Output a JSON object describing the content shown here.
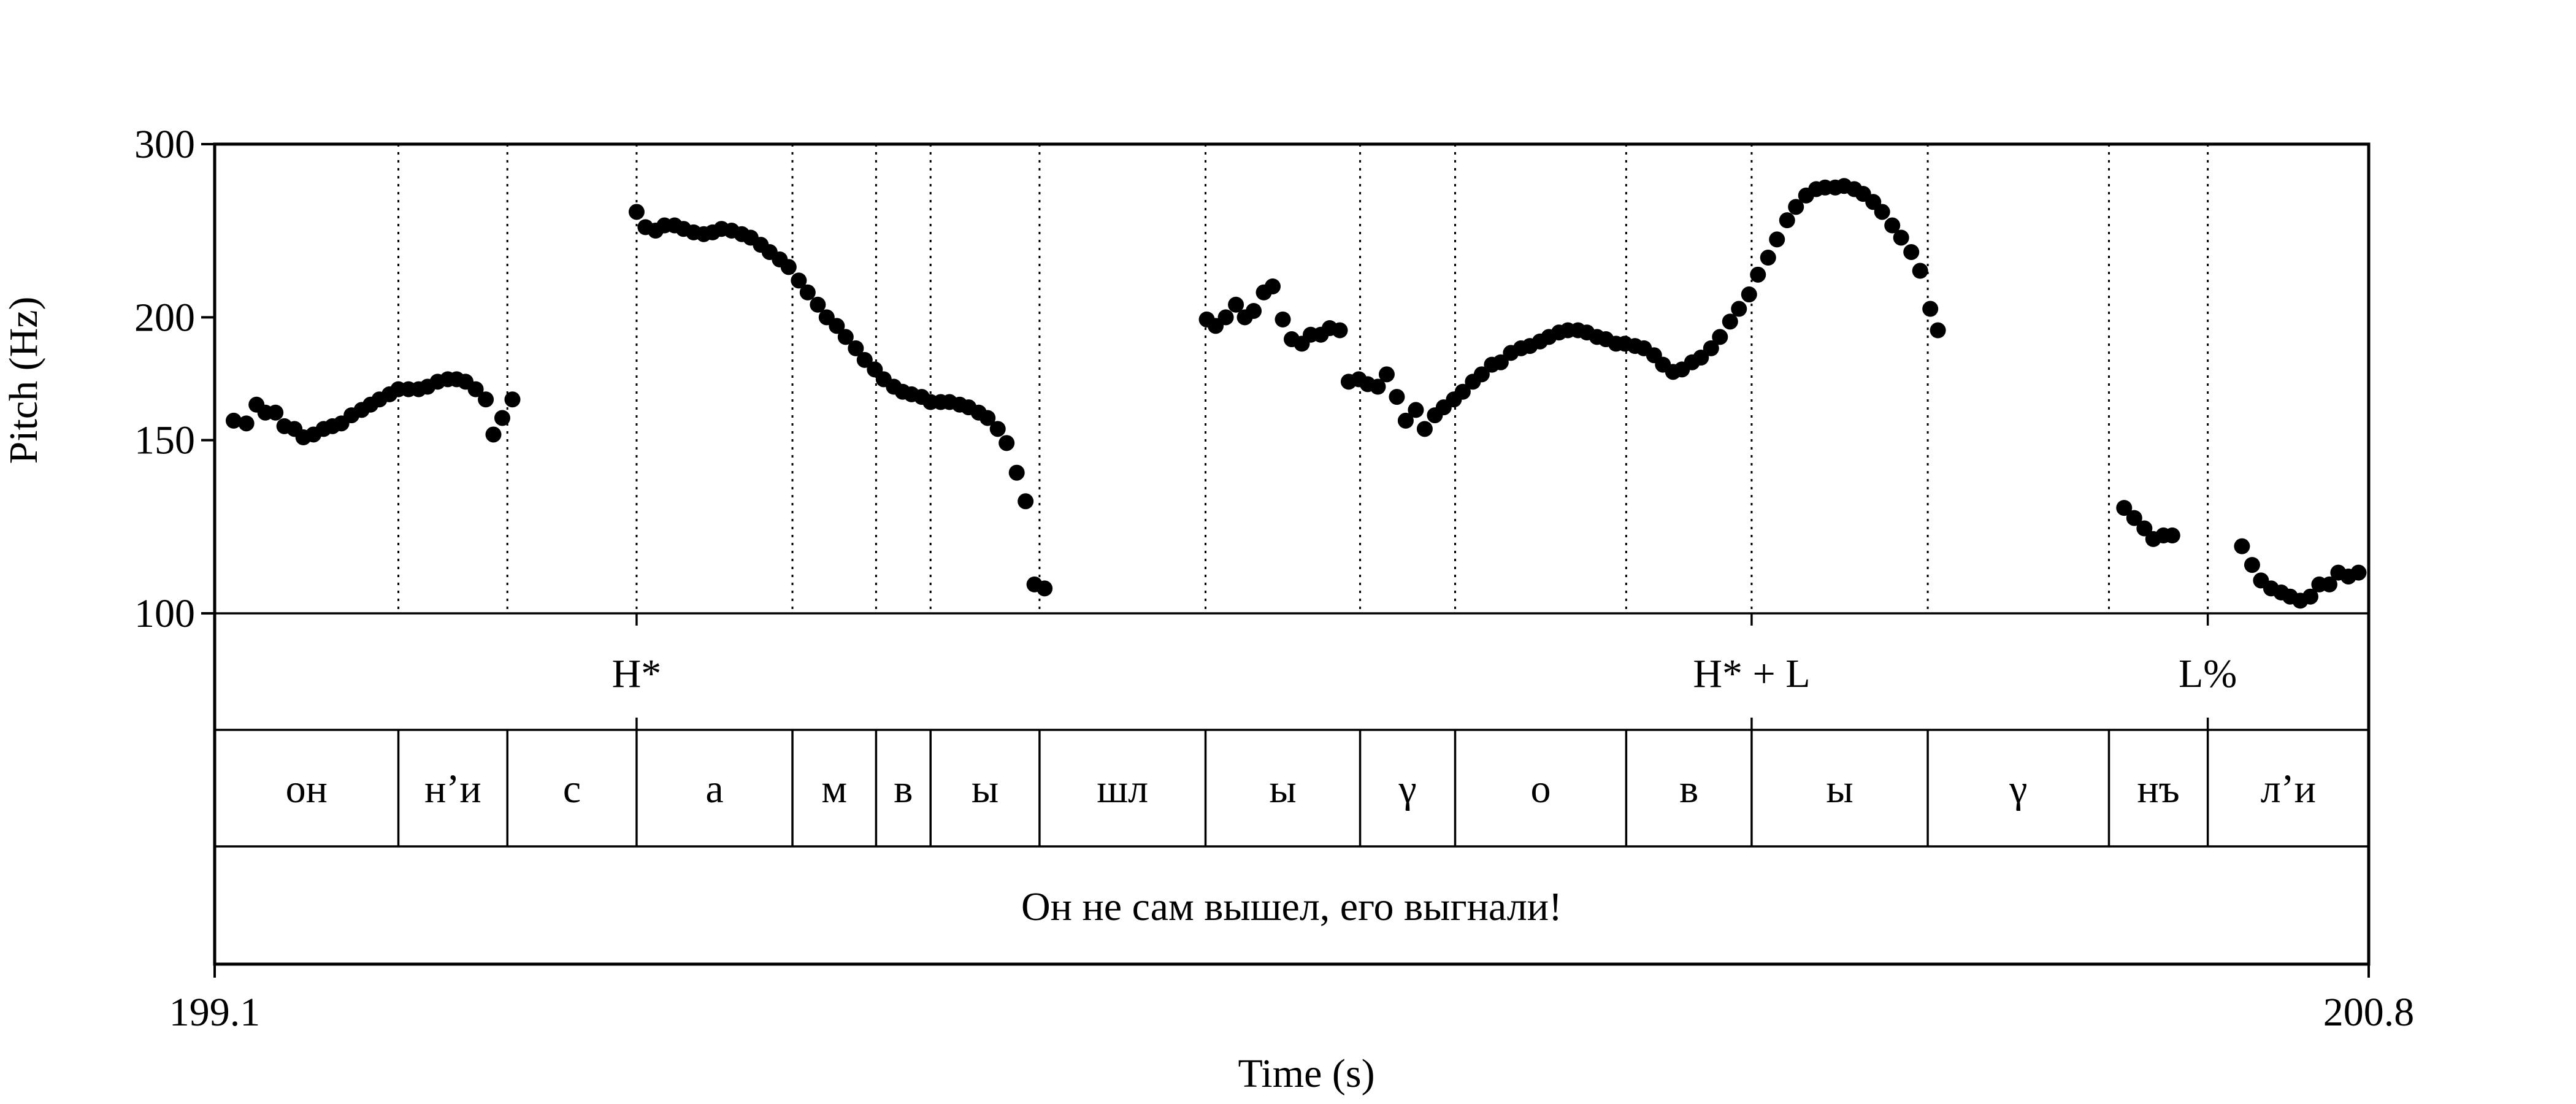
{
  "chart_data": {
    "type": "scatter",
    "title": "",
    "xlabel": "Time (s)",
    "ylabel": "Pitch (Hz)",
    "xlim": [
      199.1,
      200.8
    ],
    "ylim": [
      100,
      300
    ],
    "y_scale": "log",
    "x_tick_labels": [
      "199.1",
      "200.8"
    ],
    "y_ticks": [
      100,
      150,
      200,
      300
    ],
    "y_tick_labels": [
      "100",
      "150",
      "200",
      "300"
    ],
    "grid": false,
    "boundaries": [
      199.245,
      199.331,
      199.433,
      199.556,
      199.622,
      199.665,
      199.751,
      199.882,
      200.004,
      200.079,
      200.214,
      200.313,
      200.452,
      200.595,
      200.673
    ],
    "tones": [
      {
        "t": 199.433,
        "label": "H*"
      },
      {
        "t": 200.313,
        "label": "H* + L"
      },
      {
        "t": 200.673,
        "label": "L%"
      }
    ],
    "segments": [
      {
        "start": 199.1,
        "end": 199.245,
        "label": "он"
      },
      {
        "start": 199.245,
        "end": 199.331,
        "label": "н’и"
      },
      {
        "start": 199.331,
        "end": 199.433,
        "label": "с"
      },
      {
        "start": 199.433,
        "end": 199.556,
        "label": "а"
      },
      {
        "start": 199.556,
        "end": 199.622,
        "label": "м"
      },
      {
        "start": 199.622,
        "end": 199.665,
        "label": "в"
      },
      {
        "start": 199.665,
        "end": 199.751,
        "label": "ы"
      },
      {
        "start": 199.751,
        "end": 199.882,
        "label": "шл"
      },
      {
        "start": 199.882,
        "end": 200.004,
        "label": "ы"
      },
      {
        "start": 200.004,
        "end": 200.079,
        "label": "γ"
      },
      {
        "start": 200.079,
        "end": 200.214,
        "label": "о"
      },
      {
        "start": 200.214,
        "end": 200.313,
        "label": "в"
      },
      {
        "start": 200.313,
        "end": 200.452,
        "label": "ы"
      },
      {
        "start": 200.452,
        "end": 200.595,
        "label": "γ"
      },
      {
        "start": 200.595,
        "end": 200.673,
        "label": "нъ"
      },
      {
        "start": 200.673,
        "end": 200.8,
        "label": "л’и"
      }
    ],
    "sentence": "Он не сам вышел, его выгнали!",
    "points": [
      [
        199.115,
        157
      ],
      [
        199.125,
        156
      ],
      [
        199.133,
        163
      ],
      [
        199.14,
        160
      ],
      [
        199.148,
        160
      ],
      [
        199.155,
        155
      ],
      [
        199.163,
        154
      ],
      [
        199.17,
        151
      ],
      [
        199.178,
        152
      ],
      [
        199.186,
        154
      ],
      [
        199.193,
        155
      ],
      [
        199.2,
        156
      ],
      [
        199.208,
        159
      ],
      [
        199.216,
        161
      ],
      [
        199.223,
        163
      ],
      [
        199.23,
        165
      ],
      [
        199.238,
        167
      ],
      [
        199.245,
        169
      ],
      [
        199.253,
        169
      ],
      [
        199.261,
        169
      ],
      [
        199.268,
        170
      ],
      [
        199.276,
        172
      ],
      [
        199.284,
        173
      ],
      [
        199.291,
        173
      ],
      [
        199.298,
        172
      ],
      [
        199.306,
        169
      ],
      [
        199.314,
        165
      ],
      [
        199.32,
        152
      ],
      [
        199.327,
        158
      ],
      [
        199.335,
        165
      ],
      [
        199.433,
        256
      ],
      [
        199.44,
        247
      ],
      [
        199.448,
        245
      ],
      [
        199.455,
        248
      ],
      [
        199.463,
        248
      ],
      [
        199.47,
        246
      ],
      [
        199.478,
        244
      ],
      [
        199.486,
        243
      ],
      [
        199.493,
        244
      ],
      [
        199.5,
        246
      ],
      [
        199.508,
        245
      ],
      [
        199.516,
        243
      ],
      [
        199.523,
        241
      ],
      [
        199.531,
        237
      ],
      [
        199.538,
        233
      ],
      [
        199.546,
        229
      ],
      [
        199.553,
        225
      ],
      [
        199.561,
        218
      ],
      [
        199.568,
        212
      ],
      [
        199.576,
        206
      ],
      [
        199.583,
        200
      ],
      [
        199.591,
        196
      ],
      [
        199.598,
        191
      ],
      [
        199.606,
        186
      ],
      [
        199.613,
        181
      ],
      [
        199.621,
        177
      ],
      [
        199.628,
        173
      ],
      [
        199.636,
        170
      ],
      [
        199.643,
        168
      ],
      [
        199.65,
        167
      ],
      [
        199.658,
        166
      ],
      [
        199.665,
        164
      ],
      [
        199.673,
        164
      ],
      [
        199.68,
        164
      ],
      [
        199.688,
        163
      ],
      [
        199.695,
        162
      ],
      [
        199.703,
        160
      ],
      [
        199.71,
        158
      ],
      [
        199.718,
        154
      ],
      [
        199.725,
        149
      ],
      [
        199.733,
        139
      ],
      [
        199.74,
        130
      ],
      [
        199.747,
        107
      ],
      [
        199.755,
        106
      ],
      [
        199.883,
        199
      ],
      [
        199.89,
        196
      ],
      [
        199.898,
        200
      ],
      [
        199.906,
        206
      ],
      [
        199.913,
        200
      ],
      [
        199.92,
        203
      ],
      [
        199.928,
        212
      ],
      [
        199.935,
        215
      ],
      [
        199.943,
        199
      ],
      [
        199.95,
        190
      ],
      [
        199.958,
        188
      ],
      [
        199.965,
        192
      ],
      [
        199.973,
        192
      ],
      [
        199.98,
        195
      ],
      [
        199.988,
        194
      ],
      [
        199.995,
        172
      ],
      [
        200.003,
        173
      ],
      [
        200.01,
        171
      ],
      [
        200.018,
        170
      ],
      [
        200.025,
        175
      ],
      [
        200.033,
        166
      ],
      [
        200.04,
        157
      ],
      [
        200.048,
        161
      ],
      [
        200.055,
        154
      ],
      [
        200.063,
        159
      ],
      [
        200.07,
        162
      ],
      [
        200.078,
        165
      ],
      [
        200.085,
        168
      ],
      [
        200.093,
        172
      ],
      [
        200.1,
        175
      ],
      [
        200.108,
        179
      ],
      [
        200.115,
        180
      ],
      [
        200.123,
        184
      ],
      [
        200.131,
        186
      ],
      [
        200.138,
        187
      ],
      [
        200.146,
        189
      ],
      [
        200.153,
        191
      ],
      [
        200.161,
        193
      ],
      [
        200.168,
        194
      ],
      [
        200.176,
        194
      ],
      [
        200.183,
        193
      ],
      [
        200.191,
        191
      ],
      [
        200.198,
        190
      ],
      [
        200.206,
        188
      ],
      [
        200.213,
        188
      ],
      [
        200.221,
        187
      ],
      [
        200.228,
        186
      ],
      [
        200.236,
        183
      ],
      [
        200.243,
        179
      ],
      [
        200.251,
        176
      ],
      [
        200.258,
        177
      ],
      [
        200.266,
        180
      ],
      [
        200.273,
        182
      ],
      [
        200.281,
        186
      ],
      [
        200.288,
        191
      ],
      [
        200.296,
        198
      ],
      [
        200.303,
        204
      ],
      [
        200.311,
        211
      ],
      [
        200.318,
        221
      ],
      [
        200.326,
        230
      ],
      [
        200.333,
        240
      ],
      [
        200.341,
        251
      ],
      [
        200.348,
        259
      ],
      [
        200.356,
        266
      ],
      [
        200.364,
        270
      ],
      [
        200.371,
        271
      ],
      [
        200.379,
        271
      ],
      [
        200.386,
        272
      ],
      [
        200.394,
        270
      ],
      [
        200.401,
        267
      ],
      [
        200.409,
        262
      ],
      [
        200.416,
        256
      ],
      [
        200.424,
        248
      ],
      [
        200.431,
        241
      ],
      [
        200.439,
        233
      ],
      [
        200.446,
        223
      ],
      [
        200.454,
        204
      ],
      [
        200.46,
        194
      ],
      [
        200.607,
        128
      ],
      [
        200.615,
        125
      ],
      [
        200.623,
        122
      ],
      [
        200.63,
        119
      ],
      [
        200.638,
        120
      ],
      [
        200.645,
        120
      ],
      [
        200.7,
        117
      ],
      [
        200.708,
        112
      ],
      [
        200.715,
        108
      ],
      [
        200.723,
        106
      ],
      [
        200.731,
        105
      ],
      [
        200.738,
        104
      ],
      [
        200.746,
        103
      ],
      [
        200.754,
        104
      ],
      [
        200.761,
        107
      ],
      [
        200.769,
        107
      ],
      [
        200.776,
        110
      ],
      [
        200.784,
        109
      ],
      [
        200.792,
        110
      ]
    ]
  }
}
